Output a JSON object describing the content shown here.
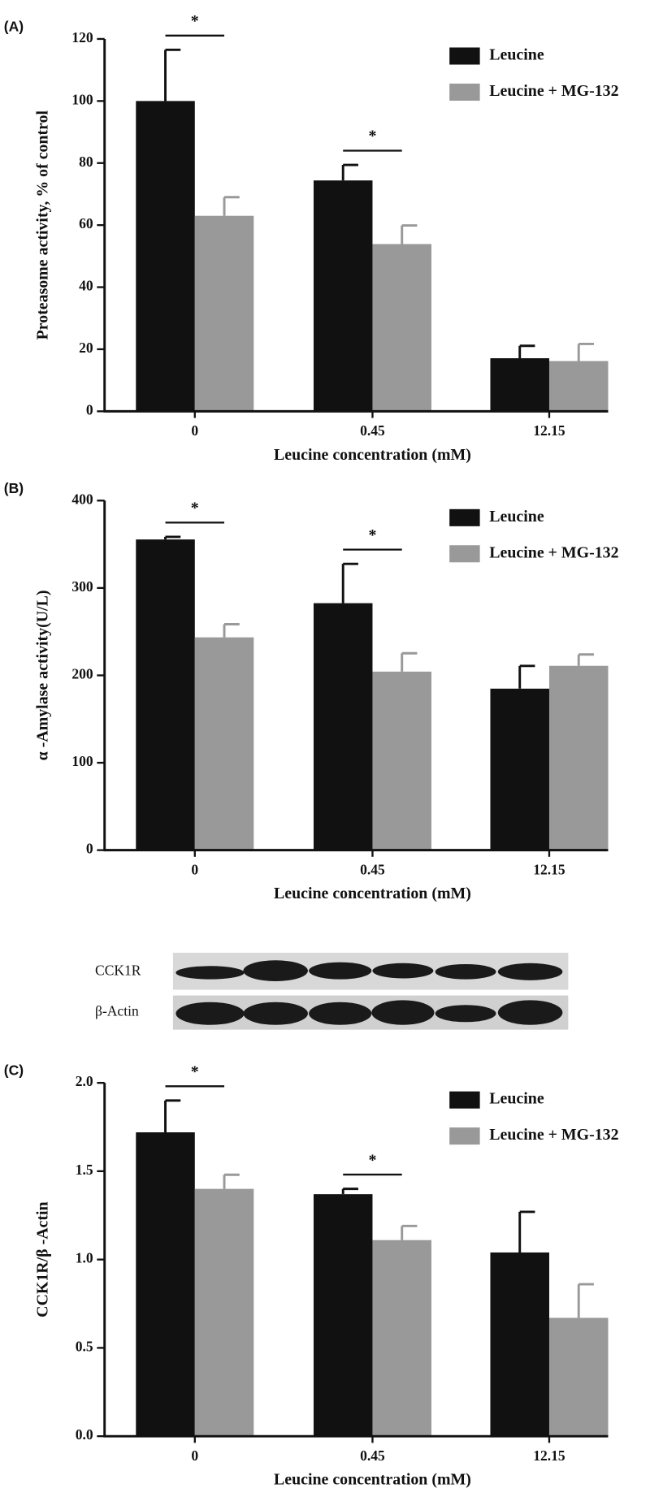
{
  "chart_data": [
    {
      "type": "bar",
      "panel": "(A)",
      "y_label": "Proteasome activity, % of control",
      "x_label": "Leucine concentration (mM)",
      "categories": [
        "0",
        "0.45",
        "12.15"
      ],
      "series": [
        {
          "name": "Leucine",
          "color": "#111111",
          "values": [
            100,
            74.4,
            17.1
          ],
          "errors": [
            16.5,
            5,
            4
          ]
        },
        {
          "name": "Leucine + MG-132",
          "color": "#999999",
          "values": [
            63,
            53.9,
            16.2
          ],
          "errors": [
            6,
            6,
            5.5
          ]
        }
      ],
      "ylim": [
        0,
        120
      ],
      "yticks": [
        0,
        20,
        40,
        60,
        80,
        100,
        120
      ],
      "annotations": [
        "*",
        "*"
      ]
    },
    {
      "type": "bar",
      "panel": "(B)",
      "y_label": "α -Amylase activity(U/L)",
      "x_label": "Leucine concentration (mM)",
      "categories": [
        "0",
        "0.45",
        "12.15"
      ],
      "series": [
        {
          "name": "Leucine",
          "color": "#111111",
          "values": [
            355.5,
            282.6,
            184.8
          ],
          "errors": [
            3,
            45,
            26
          ]
        },
        {
          "name": "Leucine + MG-132",
          "color": "#999999",
          "values": [
            243.5,
            204.3,
            210.9
          ],
          "errors": [
            15,
            21,
            13
          ]
        }
      ],
      "ylim": [
        0,
        400
      ],
      "yticks": [
        0,
        100,
        200,
        300,
        400
      ],
      "annotations": [
        "*",
        "*"
      ]
    },
    {
      "type": "bar",
      "panel": "(C)",
      "y_label": "CCK1R/β -Actin",
      "x_label": "Leucine concentration (mM)",
      "categories": [
        "0",
        "0.45",
        "12.15"
      ],
      "series": [
        {
          "name": "Leucine",
          "color": "#111111",
          "values": [
            1.72,
            1.37,
            1.04
          ],
          "errors": [
            0.18,
            0.03,
            0.23
          ]
        },
        {
          "name": "Leucine + MG-132",
          "color": "#999999",
          "values": [
            1.4,
            1.11,
            0.67
          ],
          "errors": [
            0.08,
            0.08,
            0.19
          ]
        }
      ],
      "ylim": [
        0,
        2
      ],
      "yticks": [
        {
          "value": 0,
          "label": "0.0"
        },
        0.5,
        {
          "value": 1,
          "label": "1.0"
        },
        1.5,
        {
          "value": 2,
          "label": "2.0"
        }
      ],
      "annotations": [
        "*",
        "*"
      ]
    }
  ],
  "blot": {
    "rows": [
      "CCK1R",
      "β-Actin"
    ]
  }
}
